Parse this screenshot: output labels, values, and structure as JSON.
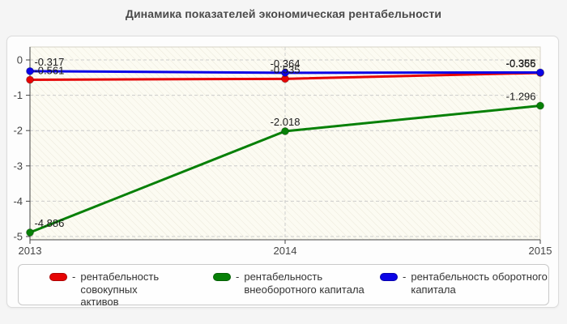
{
  "page": {
    "title": "Динамика показателей экономическая рентабельности",
    "background_color": "#f5f5f5"
  },
  "chart_data": {
    "type": "line",
    "title": "Динамика показателей экономическая рентабельности",
    "categories": [
      "2013",
      "2014",
      "2015"
    ],
    "series": [
      {
        "name": "рентабельность совокупных активов",
        "color": "#e60404",
        "values": [
          -0.561,
          -0.535,
          -0.366
        ],
        "point_labels": [
          "-0.561",
          "-0.535",
          "-0.366"
        ]
      },
      {
        "name": "рентабельность внеоборотного капитала",
        "color": "#078007",
        "values": [
          -4.886,
          -2.018,
          -1.296
        ],
        "point_labels": [
          "-4.886",
          "-2.018",
          "-1.296"
        ]
      },
      {
        "name": "рентабельность оборотного капитала",
        "color": "#0b04e6",
        "values": [
          -0.317,
          -0.364,
          -0.355
        ],
        "point_labels": [
          "-0.317",
          "-0.364",
          "-0.355"
        ]
      }
    ],
    "xlabel": "",
    "ylabel": "",
    "ylim": [
      -5,
      0
    ],
    "yticks": [
      0,
      -1,
      -2,
      -3,
      -4,
      -5
    ],
    "grid": {
      "horizontal": "dashed",
      "vertical_at_categories": "dashed"
    },
    "legend_position": "bottom",
    "marker": "circle",
    "plot_background": "hatched"
  },
  "legend": {
    "dash": "-",
    "items": [
      {
        "color": "#e60404",
        "lines": [
          "рентабельность совокупных",
          "активов"
        ]
      },
      {
        "color": "#078007",
        "lines": [
          "рентабельность",
          "внеоборотного капитала"
        ]
      },
      {
        "color": "#0b04e6",
        "lines": [
          "рентабельность оборотного",
          "капитала"
        ]
      }
    ]
  }
}
